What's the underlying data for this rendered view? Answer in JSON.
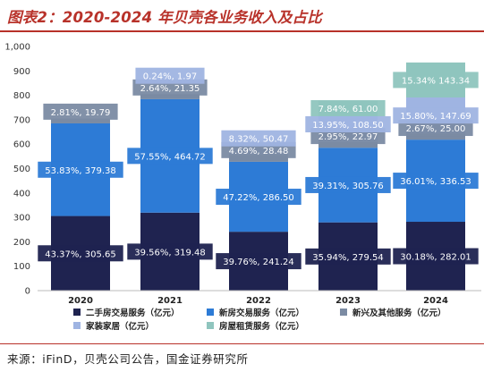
{
  "title": "图表2：2020-2024 年贝壳各业务收入及占比",
  "source": "来源：iFinD，贝壳公司公告，国金证券研究所",
  "colors": {
    "title": "#b8322a",
    "二手房交易服务": "#1f2350",
    "新房交易服务": "#2d7bd6",
    "新兴及其他服务": "#7b8ba3",
    "家装家居": "#9fb4e2",
    "房屋租赁服务": "#8fc5be"
  },
  "chart_data": {
    "type": "bar",
    "stacked": true,
    "categories": [
      "2020",
      "2021",
      "2022",
      "2023",
      "2024"
    ],
    "ylim": [
      0,
      1000
    ],
    "yticks": [
      "0",
      "100",
      "200",
      "300",
      "400",
      "500",
      "600",
      "700",
      "800",
      "900",
      "1,000"
    ],
    "grid": false,
    "legend_position": "bottom",
    "series": [
      {
        "name": "二手房交易服务（亿元）",
        "values": [
          305.65,
          319.48,
          241.24,
          279.54,
          282.01
        ],
        "labels": [
          "43.37%, 305.65",
          "39.56%, 319.48",
          "39.76%, 241.24",
          "35.94%, 279.54",
          "30.18%, 282.01"
        ]
      },
      {
        "name": "新房交易服务（亿元）",
        "values": [
          379.38,
          464.72,
          286.5,
          305.76,
          336.53
        ],
        "labels": [
          "53.83%, 379.38",
          "57.55%, 464.72",
          "47.22%, 286.50",
          "39.31%, 305.76",
          "36.01%, 336.53"
        ]
      },
      {
        "name": "新兴及其他服务（亿元）",
        "values": [
          19.79,
          21.35,
          28.48,
          22.97,
          25.0
        ],
        "labels": [
          "2.81%, 19.79",
          "2.64%, 21.35",
          "4.69%, 28.48",
          "2.95%, 22.97",
          "2.67%, 25.00"
        ]
      },
      {
        "name": "家装家居（亿元）",
        "values": [
          0,
          1.97,
          50.47,
          108.5,
          147.69
        ],
        "labels": [
          "",
          "0.24%, 1.97",
          "8.32%, 50.47",
          "13.95%, 108.50",
          "15.80%, 147.69"
        ]
      },
      {
        "name": "房屋租赁服务（亿元）",
        "values": [
          0,
          0,
          0,
          61.0,
          143.34
        ],
        "labels": [
          "",
          "",
          "",
          "7.84%, 61.00",
          "15.34%  143.34"
        ]
      }
    ]
  }
}
